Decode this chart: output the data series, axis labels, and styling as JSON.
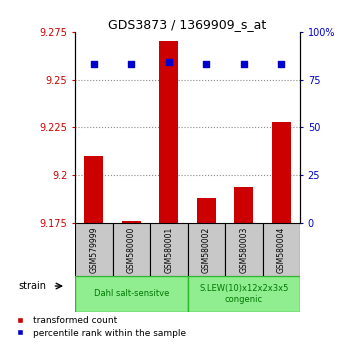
{
  "title": "GDS3873 / 1369909_s_at",
  "samples": [
    "GSM579999",
    "GSM580000",
    "GSM580001",
    "GSM580002",
    "GSM580003",
    "GSM580004"
  ],
  "red_values": [
    9.21,
    9.176,
    9.27,
    9.188,
    9.194,
    9.228
  ],
  "blue_values": [
    83,
    83,
    84,
    83,
    83,
    83
  ],
  "ylim_left": [
    9.175,
    9.275
  ],
  "ylim_right": [
    0,
    100
  ],
  "yticks_left": [
    9.175,
    9.2,
    9.225,
    9.25,
    9.275
  ],
  "yticks_right": [
    0,
    25,
    50,
    75,
    100
  ],
  "ytick_labels_left": [
    "9.175",
    "9.2",
    "9.225",
    "9.25",
    "9.275"
  ],
  "ytick_labels_right": [
    "0",
    "25",
    "50",
    "75",
    "100%"
  ],
  "groups": [
    {
      "label": "Dahl salt-sensitve",
      "color": "#90EE90",
      "start": 0,
      "end": 3
    },
    {
      "label": "S.LEW(10)x12x2x3x5\ncongenic",
      "color": "#90EE90",
      "start": 3,
      "end": 6
    }
  ],
  "group_box_color": "#C8C8C8",
  "red_color": "#CC0000",
  "blue_color": "#0000CC",
  "left_axis_color": "#CC0000",
  "right_axis_color": "#0000CC",
  "strain_label": "strain",
  "legend_red": "transformed count",
  "legend_blue": "percentile rank within the sample",
  "base_value": 9.175,
  "dotted_line_color": "#888888",
  "bar_width": 0.5
}
